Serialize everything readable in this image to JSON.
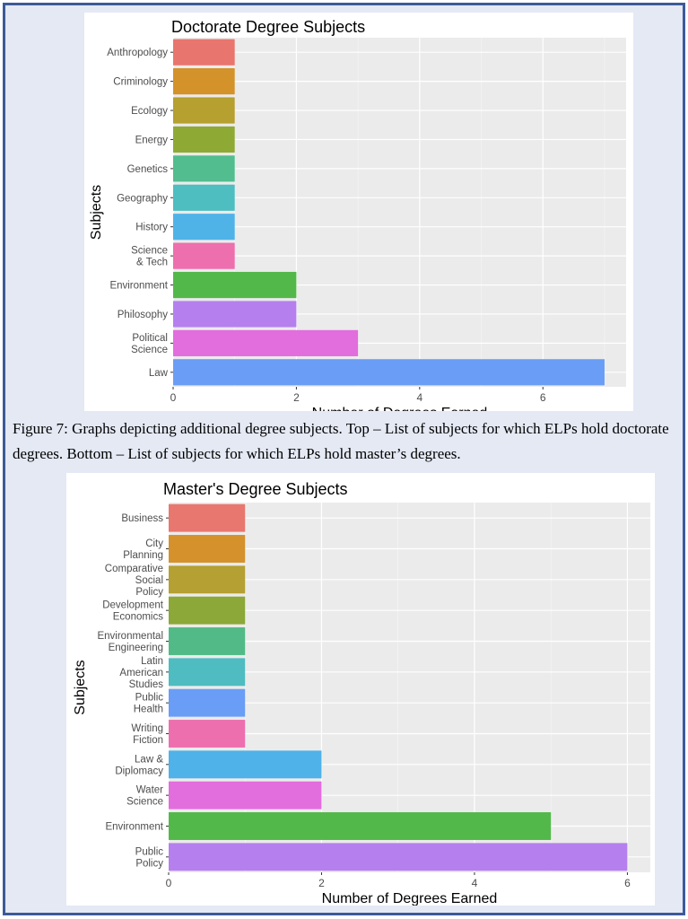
{
  "caption": "Figure 7: Graphs depicting additional degree subjects. Top – List of subjects for which ELPs hold doctorate degrees. Bottom – List of subjects for which ELPs hold master’s degrees.",
  "chart_data": [
    {
      "type": "bar",
      "orientation": "horizontal",
      "title": "Doctorate Degree Subjects",
      "xlabel": "Number of Degrees Earned",
      "ylabel": "Subjects",
      "xlim": [
        0,
        7.35
      ],
      "xticks": [
        0,
        2,
        4,
        6
      ],
      "grid": true,
      "categories": [
        [
          "Anthropology"
        ],
        [
          "Criminology"
        ],
        [
          "Ecology"
        ],
        [
          "Energy"
        ],
        [
          "Genetics"
        ],
        [
          "Geography"
        ],
        [
          "History"
        ],
        [
          "Science",
          "& Tech"
        ],
        [
          "Environment"
        ],
        [
          "Philosophy"
        ],
        [
          "Political",
          "Science"
        ],
        [
          "Law"
        ]
      ],
      "values": [
        1,
        1,
        1,
        1,
        1,
        1,
        1,
        1,
        2,
        2,
        3,
        7
      ],
      "colors": [
        "#E8766E",
        "#D4922A",
        "#B5A030",
        "#8EAA35",
        "#52BD8E",
        "#4EBEC0",
        "#4FB3E8",
        "#ED6FAE",
        "#53B84A",
        "#B580EE",
        "#E26DDD",
        "#6A9DF5"
      ]
    },
    {
      "type": "bar",
      "orientation": "horizontal",
      "title": "Master's Degree Subjects",
      "xlabel": "Number of Degrees Earned",
      "ylabel": "Subjects",
      "xlim": [
        0,
        6.3
      ],
      "xticks": [
        0,
        2,
        4,
        6
      ],
      "grid": true,
      "categories": [
        [
          "Business"
        ],
        [
          "City",
          "Planning"
        ],
        [
          "Comparative",
          "Social",
          "Policy"
        ],
        [
          "Development",
          "Economics"
        ],
        [
          "Environmental",
          "Engineering"
        ],
        [
          "Latin",
          "American",
          "Studies"
        ],
        [
          "Public",
          "Health"
        ],
        [
          "Writing",
          "Fiction"
        ],
        [
          "Law &",
          "Diplomacy"
        ],
        [
          "Water",
          "Science"
        ],
        [
          "Environment"
        ],
        [
          "Public",
          "Policy"
        ]
      ],
      "values": [
        1,
        1,
        1,
        1,
        1,
        1,
        1,
        1,
        2,
        2,
        5,
        6
      ],
      "colors": [
        "#E8776F",
        "#D4912C",
        "#B4A033",
        "#8BA838",
        "#52BA86",
        "#4EBCC0",
        "#6A9DF5",
        "#ED6FAE",
        "#4FB2E8",
        "#E26DDD",
        "#53B84A",
        "#B580EE"
      ]
    }
  ]
}
